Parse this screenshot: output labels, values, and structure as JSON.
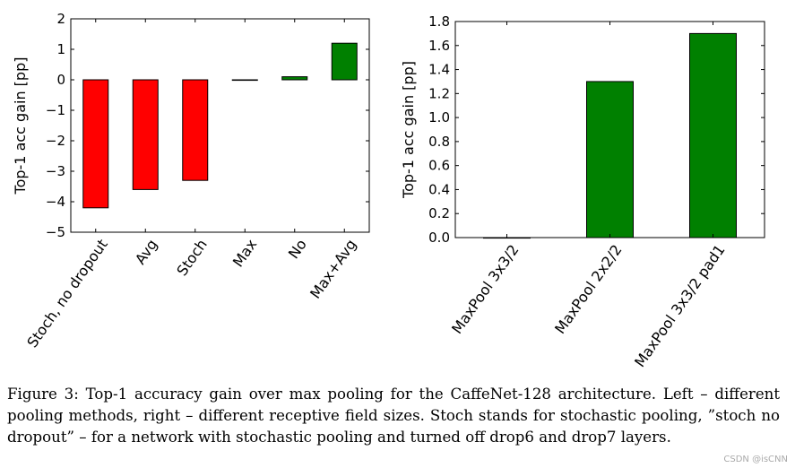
{
  "chart_data": [
    {
      "type": "bar",
      "categories": [
        "Stoch, no dropout",
        "Avg",
        "Stoch",
        "Max",
        "No",
        "Max+Avg"
      ],
      "values": [
        -4.2,
        -3.6,
        -3.3,
        0.0,
        0.1,
        1.2
      ],
      "colors": [
        "#ff0000",
        "#ff0000",
        "#ff0000",
        "#ff0000",
        "#008000",
        "#008000"
      ],
      "ylabel": "Top-1 acc gain [pp]",
      "xlabel": "",
      "title": "",
      "ylim": [
        -5,
        2
      ],
      "yticks": [
        2,
        1,
        0,
        -1,
        -2,
        -3,
        -4,
        -5
      ],
      "ytick_labels": [
        "2",
        "1",
        "0",
        "−1",
        "−2",
        "−3",
        "−4",
        "−5"
      ],
      "grid": false
    },
    {
      "type": "bar",
      "categories": [
        "MaxPool 3x3/2",
        "MaxPool 2x2/2",
        "MaxPool 3x3/2 pad1"
      ],
      "values": [
        0.0,
        1.3,
        1.7
      ],
      "colors": [
        "#008000",
        "#008000",
        "#008000"
      ],
      "ylabel": "Top-1 acc gain [pp]",
      "xlabel": "",
      "title": "",
      "ylim": [
        0,
        1.8
      ],
      "yticks": [
        0,
        0.2,
        0.4,
        0.6,
        0.8,
        1.0,
        1.2,
        1.4,
        1.6,
        1.8
      ],
      "ytick_labels": [
        "0.0",
        "0.2",
        "0.4",
        "0.6",
        "0.8",
        "1.0",
        "1.2",
        "1.4",
        "1.6",
        "1.8"
      ],
      "grid": false
    }
  ],
  "caption": "Figure 3: Top-1 accuracy gain over max pooling for the CaffeNet-128 architecture. Left – different pooling methods, right – different receptive field sizes. Stoch stands for stochastic pooling, ”stoch no dropout” – for a network with stochastic pooling and turned off drop6 and drop7 layers.",
  "watermark": "CSDN @isCNN"
}
